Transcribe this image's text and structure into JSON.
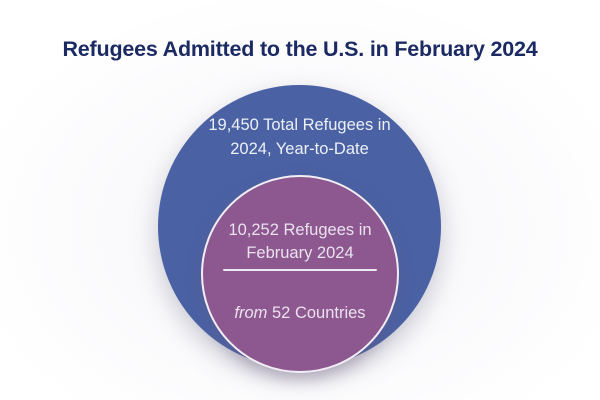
{
  "title": "Refugees Admitted to the U.S. in February 2024",
  "outer_circle": {
    "line1": "19,450 Total Refugees in",
    "line2": "2024, Year-to-Date",
    "color": "#4a61a4",
    "text_color": "#edf0f6"
  },
  "inner_circle": {
    "line1": "10,252 Refugees in",
    "line2": "February 2024",
    "from_word": "from",
    "countries_text": " 52 Countries",
    "color": "#8d5790",
    "border_color": "#f2eef5",
    "text_color": "#eae3ee"
  },
  "title_color": "#1c2a63",
  "chart_data": {
    "type": "nested-circles",
    "title": "Refugees Admitted to the U.S. in February 2024",
    "series": [
      {
        "name": "Total Refugees in 2024, Year-to-Date",
        "value": 19450,
        "color": "#4a61a4"
      },
      {
        "name": "Refugees in February 2024",
        "value": 10252,
        "color": "#8d5790"
      }
    ],
    "annotations": [
      "from 52 Countries"
    ],
    "countries_count": 52,
    "legend_position": "none",
    "grid": false
  }
}
